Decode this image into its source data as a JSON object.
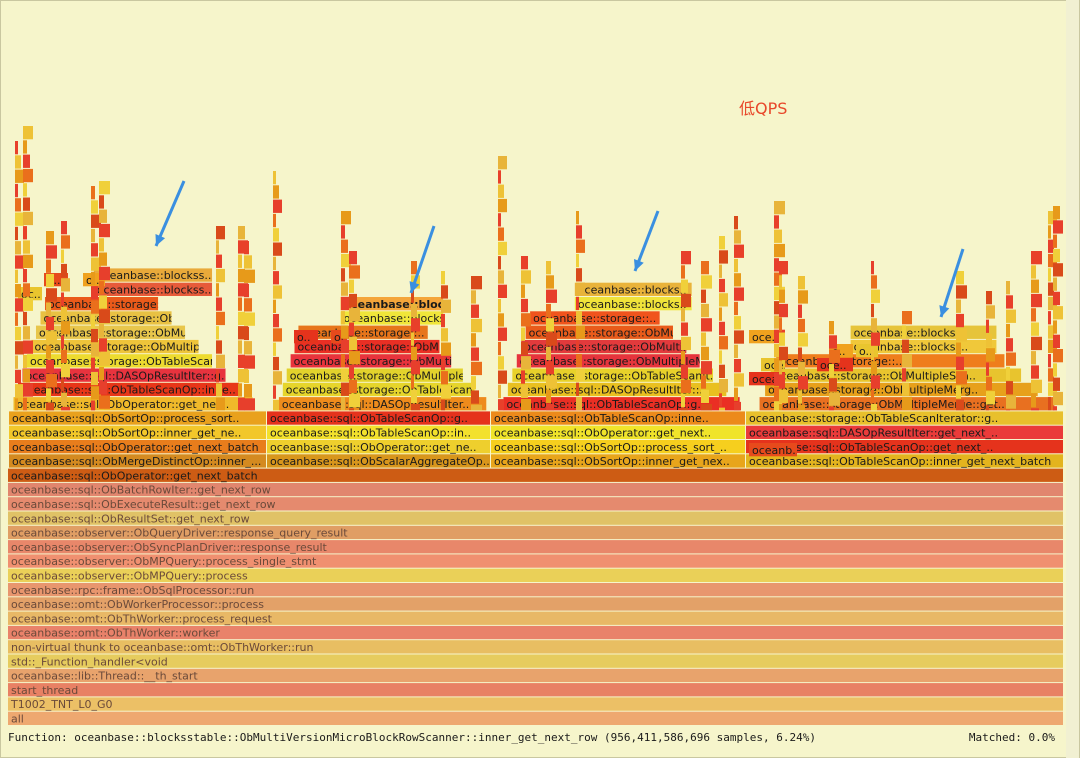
{
  "chart_data": {
    "type": "flamegraph",
    "title": "低QPS",
    "status": {
      "function_text": "Function: oceanbase::blocksstable::ObMultiVersionMicroBlockRowScanner::inner_get_next_row (956,411,586,696 samples, 6.24%)",
      "matched_text": "Matched: 0.0%"
    },
    "stack_base": [
      {
        "label": "oceanbase::sql::ObOperator::get_next_batch",
        "color": "#cd5c14"
      },
      {
        "label": "oceanbase::sql::ObBatchRowIter::get_next_row",
        "color": "#e1866e"
      },
      {
        "label": "oceanbase::sql::ObExecuteResult::get_next_row",
        "color": "#e58a6e"
      },
      {
        "label": "oceanbase::sql::ObResultSet::get_next_row",
        "color": "#e0c266"
      },
      {
        "label": "oceanbase::observer::ObQueryDriver::response_query_result",
        "color": "#e09e64"
      },
      {
        "label": "oceanbase::observer::ObSyncPlanDriver::response_result",
        "color": "#e8876a"
      },
      {
        "label": "oceanbase::observer::ObMPQuery::process_single_stmt",
        "color": "#f09070"
      },
      {
        "label": "oceanbase::observer::ObMPQuery::process",
        "color": "#ead058"
      },
      {
        "label": "oceanbase::rpc::frame::ObSqlProcessor::run",
        "color": "#e8966e"
      },
      {
        "label": "oceanbase::omt::ObWorkerProcessor::process",
        "color": "#e3a168"
      },
      {
        "label": "oceanbase::omt::ObThWorker::process_request",
        "color": "#e8b866"
      },
      {
        "label": "oceanbase::omt::ObThWorker::worker",
        "color": "#e9826a"
      },
      {
        "label": "non-virtual thunk to oceanbase::omt::ObThWorker::run",
        "color": "#e8be62"
      },
      {
        "label": "std::_Function_handler<void",
        "color": "#e6cc5e"
      },
      {
        "label": "oceanbase::lib::Thread::__th_start",
        "color": "#e8a36c"
      },
      {
        "label": "start_thread",
        "color": "#e88164"
      },
      {
        "label": "T1002_TNT_L0_G0",
        "color": "#ecc066"
      },
      {
        "label": "all",
        "color": "#eea870"
      }
    ],
    "columns": [
      {
        "levels": [
          "oceanbase::sql::ObMergeDistinctOp::inner_...",
          "oceanbase::sql::ObOperator::get_next_batch",
          "oceanbase::sql::ObSortOp::inner_get_ne..",
          "oceanbase::sql::ObSortOp::process_sort..",
          "oceanbase::sql::ObOperator::get_nex..",
          "oceanbase::sql::ObTableScanOp::inne..",
          "oceanbase::sql::DASOpResultIter::g..",
          "oceanbase::storage::ObTableScanIt..",
          "oceanbase::storage::ObMultipleMerg..",
          "oceanbase::storage::ObMultipleMerg..",
          "oceanbase::storage::ObMultipleS..",
          "oceanbase::storage::..",
          "oceanbase::blockss..",
          "oceanbase::blockss.."
        ]
      },
      {
        "levels": [
          "oceanbase::sql::ObScalarAggregateOp..",
          "oceanbase::sql::ObOperator::get_ne..",
          "oceanbase::sql::ObTableScanOp::in..",
          "oceanbase::sql::ObTableScanOp::g..",
          "oceanbase::sql::DASOpResultIter..",
          "oceanbase::storage::ObTableScan..",
          "oceanbase::storage::ObMultipleM..",
          "oceanbase::storage::ObMultipleMe..",
          "oceanbase::storage::ObMultipleSc..",
          "oceanbase::storage::..",
          "oceanbase::blocks..",
          "oceanbase::blocks.."
        ]
      },
      {
        "levels": [
          "oceanbase::sql::ObSortOp::inner_get_nex..",
          "oceanbase::sql::ObSortOp::process_sort_..",
          "oceanbase::sql::ObOperator::get_next..",
          "oceanbase::sql::ObTableScanOp::inne..",
          "oceanbase::sql::ObTableScanOp::g..",
          "oceanbase::sql::DASOpResultIter::..",
          "oceanbase::storage::ObTableScanIt..",
          "oceanbase::storage::ObMultipleMerg..",
          "oceanbase::storage::ObMultipleMerg..",
          "oceanbase::storage::ObMultipleS..",
          "oceanbase::storage::..",
          "oceanbase::blocks..",
          "oceanbase::blocks.."
        ]
      },
      {
        "levels": [
          "oceanbase::sql::ObTableScanOp::inner_get_next_batch",
          "oceanbase::sql::ObTableScanOp::get_next_..",
          "oceanbase::sql::DASOpResultIter::get_next_..",
          "oceanbase::storage::ObTableScanIterator::g..",
          "oceanbase::storage::ObMultipleMerge::get..",
          "oceanbase::storage::ObMultipleMerg..",
          "oceanbase::storage::ObMultipleSca..",
          "oceanbase::storage::..",
          "oceanbase::blockss..",
          "oceanbase::blockss.."
        ]
      }
    ],
    "small_labels": [
      "o..",
      "o..",
      "oc..",
      "o..",
      "oc..",
      "oce..",
      "oce..",
      "ocea..",
      "oceanb..",
      "o..",
      "o..",
      "oce.."
    ]
  }
}
